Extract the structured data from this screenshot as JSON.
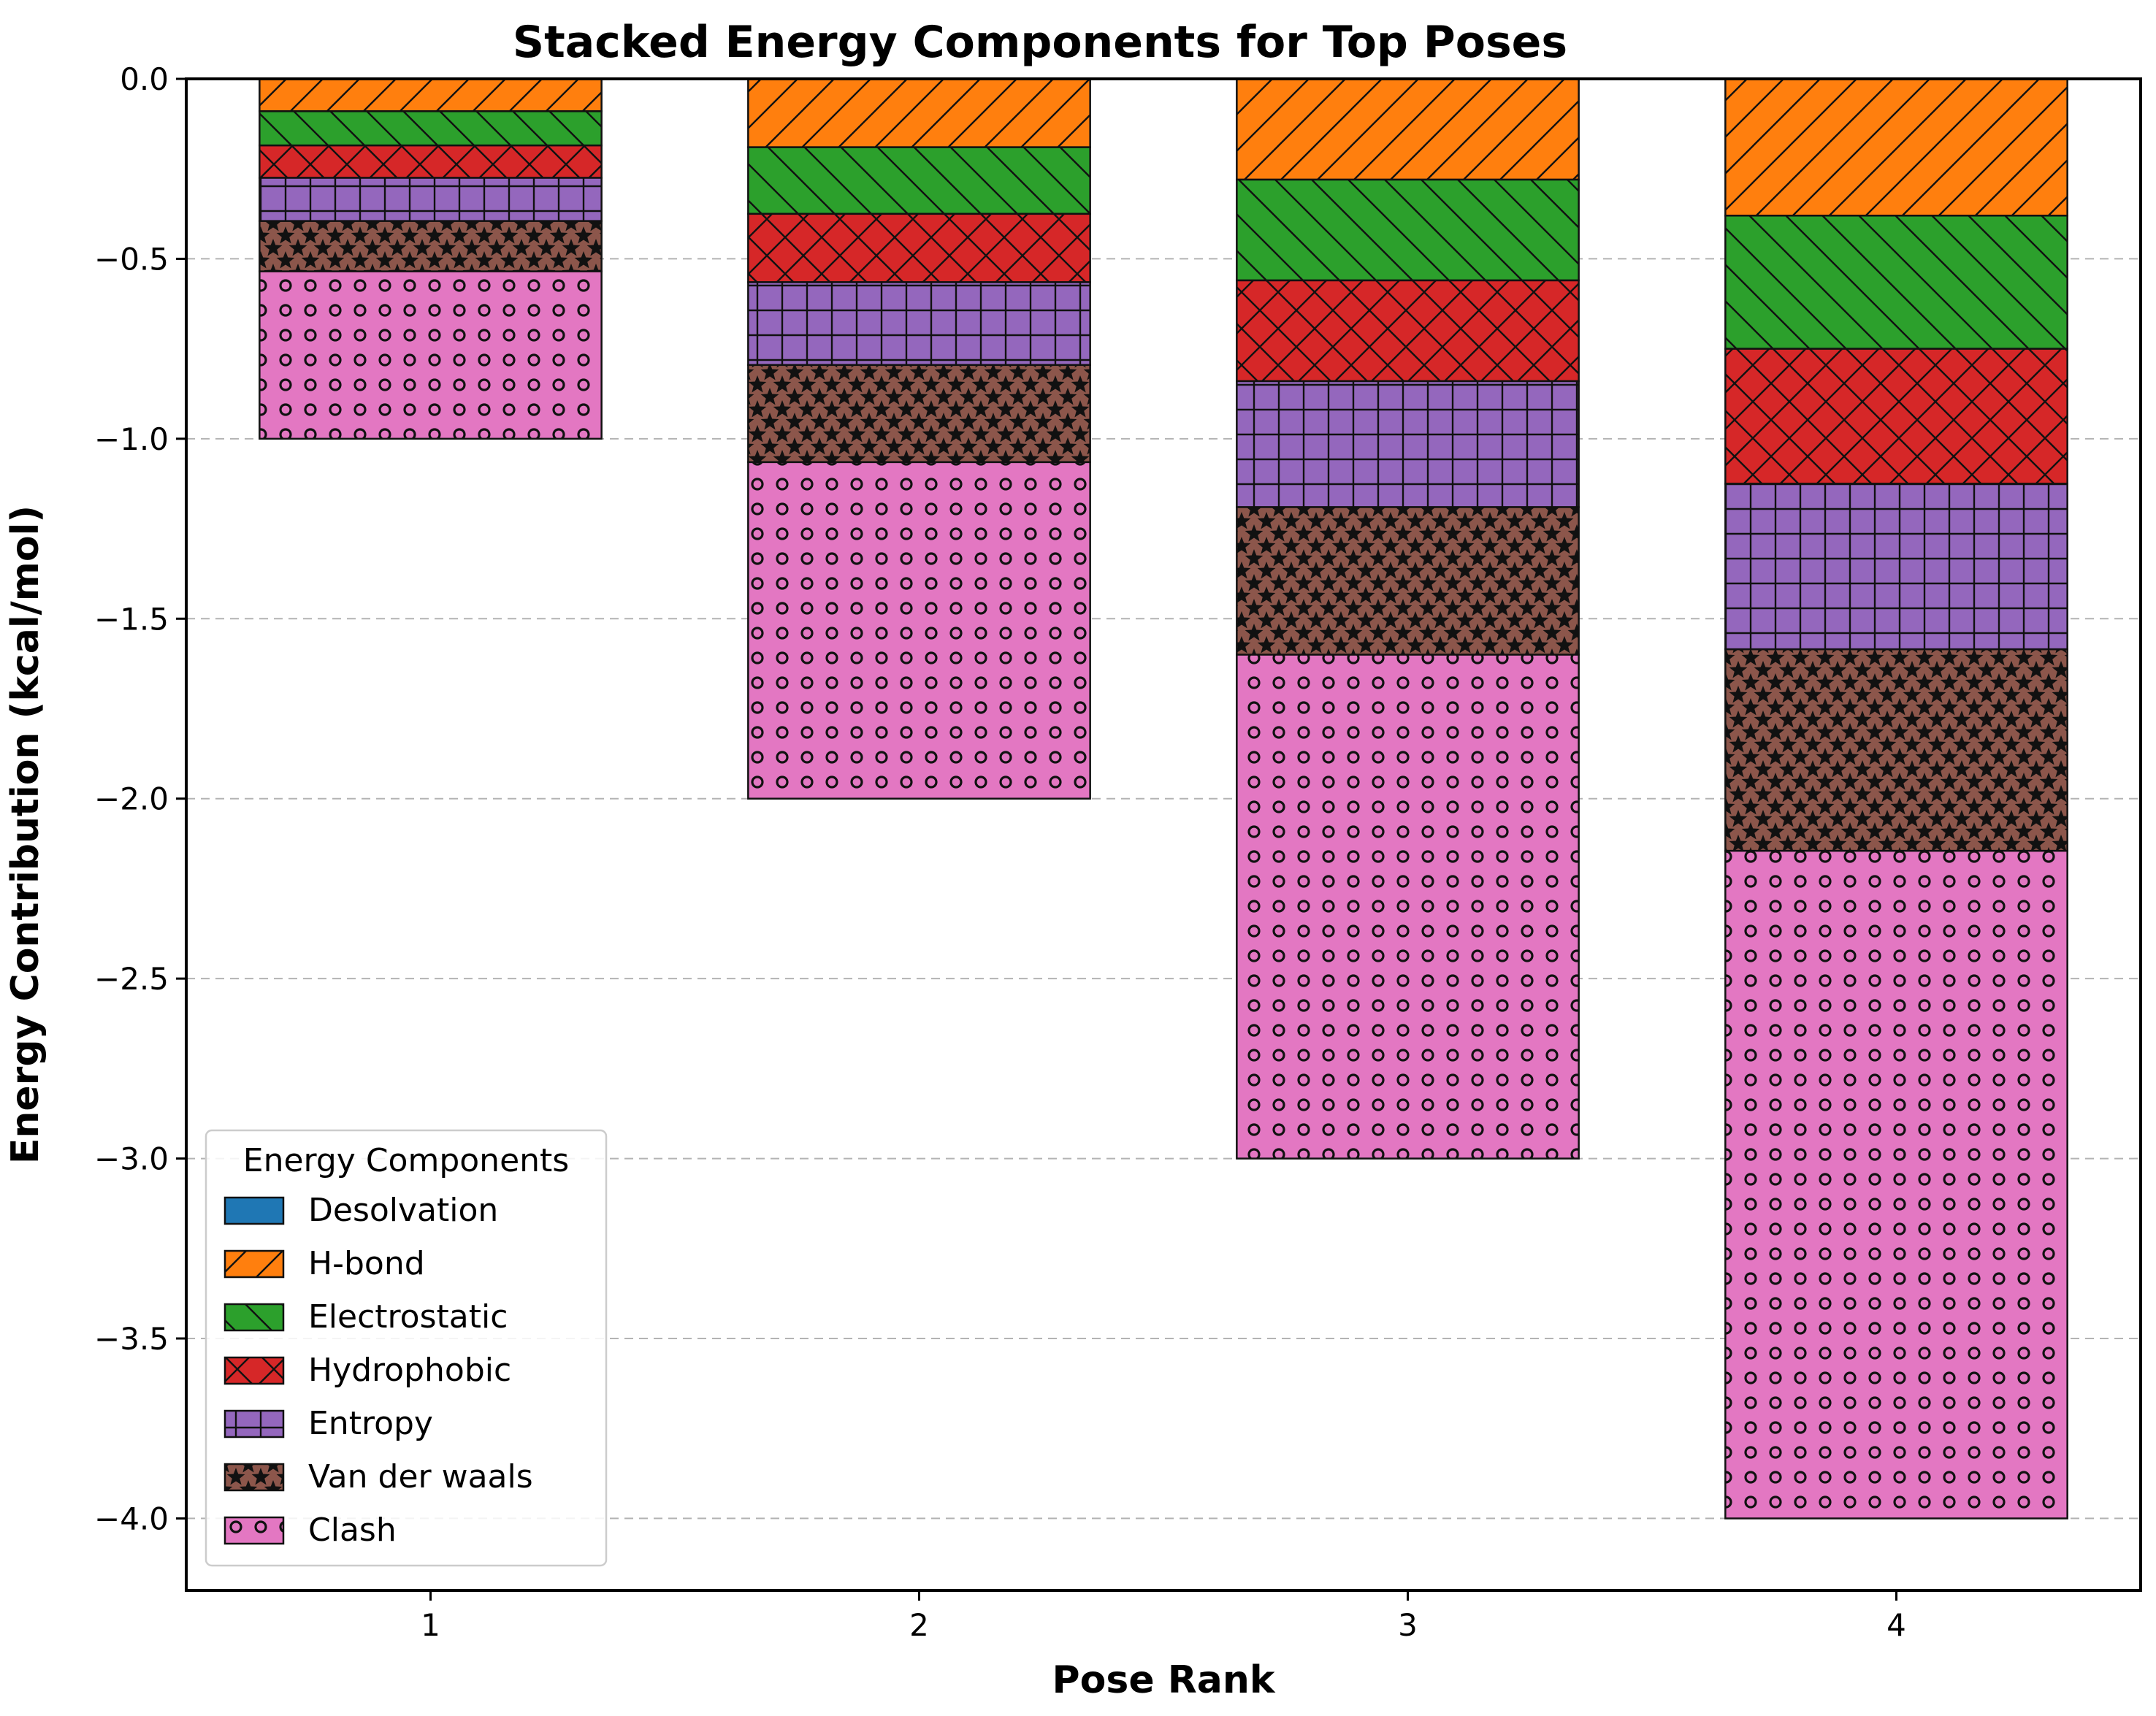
{
  "chart_data": {
    "type": "bar",
    "stacked": true,
    "title": "Stacked Energy Components for Top Poses",
    "xlabel": "Pose Rank",
    "ylabel": "Energy Contribution (kcal/mol)",
    "categories": [
      "1",
      "2",
      "3",
      "4"
    ],
    "ylim": [
      -4.2,
      0.0
    ],
    "yticks": [
      0.0,
      -0.5,
      -1.0,
      -1.5,
      -2.0,
      -2.5,
      -3.0,
      -3.5,
      -4.0
    ],
    "ytick_labels": [
      "0.0",
      "−0.5",
      "−1.0",
      "−1.5",
      "−2.0",
      "−2.5",
      "−3.0",
      "−3.5",
      "−4.0"
    ],
    "grid": "horizontal dashed",
    "legend": {
      "title": "Energy Components",
      "placement": "lower-left"
    },
    "series": [
      {
        "name": "Desolvation",
        "color": "#1f77b4",
        "hatch": "none",
        "values": [
          0.0,
          0.0,
          0.0,
          0.0
        ]
      },
      {
        "name": "H-bond",
        "color": "#ff7f0e",
        "hatch": "forward-slash",
        "values": [
          -0.09,
          -0.19,
          -0.28,
          -0.38
        ]
      },
      {
        "name": "Electrostatic",
        "color": "#2ca02c",
        "hatch": "back-slash",
        "values": [
          -0.095,
          -0.185,
          -0.28,
          -0.37
        ]
      },
      {
        "name": "Hydrophobic",
        "color": "#d62728",
        "hatch": "cross",
        "values": [
          -0.09,
          -0.19,
          -0.28,
          -0.375
        ]
      },
      {
        "name": "Entropy",
        "color": "#9467bd",
        "hatch": "grid",
        "values": [
          -0.12,
          -0.23,
          -0.35,
          -0.46
        ]
      },
      {
        "name": "Van der waals",
        "color": "#8c564b",
        "hatch": "stars",
        "values": [
          -0.14,
          -0.27,
          -0.41,
          -0.56
        ]
      },
      {
        "name": "Clash",
        "color": "#e377c2",
        "hatch": "circles",
        "values": [
          -0.465,
          -0.935,
          -1.4,
          -1.855
        ]
      }
    ]
  }
}
